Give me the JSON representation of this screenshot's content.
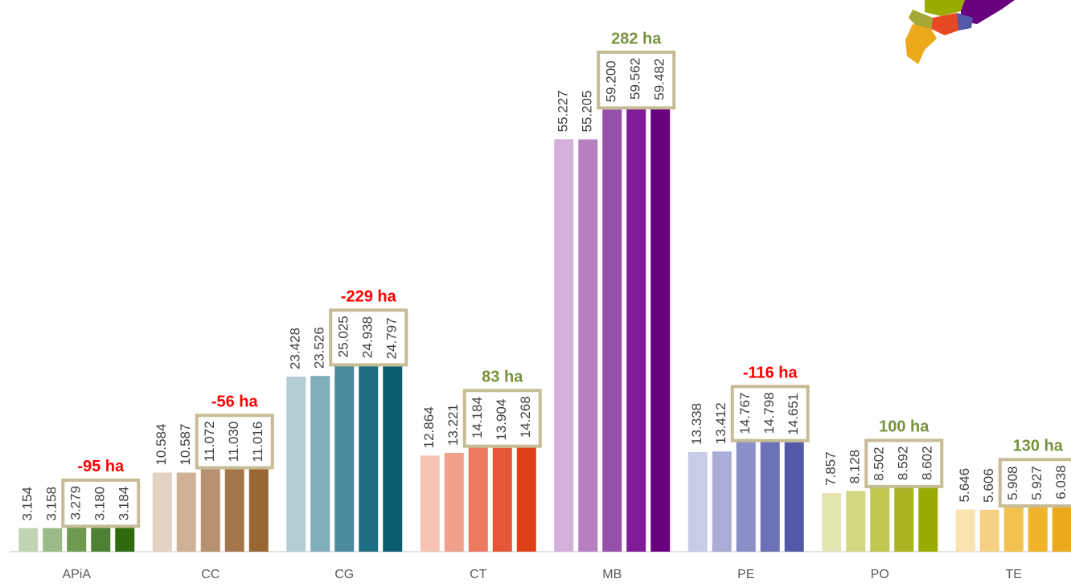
{
  "chart_data": {
    "type": "bar",
    "categories": [
      "APiA",
      "CC",
      "CG",
      "CT",
      "MB",
      "PE",
      "PO",
      "TE"
    ],
    "values": [
      [
        3154,
        3158,
        3279,
        3180,
        3184
      ],
      [
        10584,
        10587,
        11072,
        11030,
        11016
      ],
      [
        23428,
        23526,
        25025,
        24938,
        24797
      ],
      [
        12864,
        13221,
        14184,
        13904,
        14268
      ],
      [
        55227,
        55205,
        59200,
        59562,
        59482
      ],
      [
        13338,
        13412,
        14767,
        14798,
        14651
      ],
      [
        7857,
        8128,
        8502,
        8592,
        8602
      ],
      [
        5646,
        5606,
        5908,
        5927,
        6038
      ]
    ],
    "value_labels": [
      [
        "3.154",
        "3.158",
        "3.279",
        "3.180",
        "3.184"
      ],
      [
        "10.584",
        "10.587",
        "11.072",
        "11.030",
        "11.016"
      ],
      [
        "23.428",
        "23.526",
        "25.025",
        "24.938",
        "24.797"
      ],
      [
        "12.864",
        "13.221",
        "14.184",
        "13.904",
        "14.268"
      ],
      [
        "55.227",
        "55.205",
        "59.200",
        "59.562",
        "59.482"
      ],
      [
        "13.338",
        "13.412",
        "14.767",
        "14.798",
        "14.651"
      ],
      [
        "7.857",
        "8.128",
        "8.502",
        "8.592",
        "8.602"
      ],
      [
        "5.646",
        "5.606",
        "5.908",
        "5.927",
        "6.038"
      ]
    ],
    "colors": [
      [
        "#c0d4b4",
        "#9bba86",
        "#6e9a50",
        "#4c8032",
        "#2e6b0f"
      ],
      [
        "#e2d2c2",
        "#cfb196",
        "#b89270",
        "#a5754a",
        "#9a6633"
      ],
      [
        "#b3cdd3",
        "#7fadb9",
        "#4a8a9c",
        "#1f6d80",
        "#0a5b6e"
      ],
      [
        "#f7c4b4",
        "#f0a08a",
        "#eb7a60",
        "#e55638",
        "#dd3f17"
      ],
      [
        "#d4b1da",
        "#b680c1",
        "#9650aa",
        "#801c98",
        "#68007f"
      ],
      [
        "#c9cce6",
        "#a8acd6",
        "#8a8fc7",
        "#6c71b6",
        "#5458a8"
      ],
      [
        "#e2e5af",
        "#d2d880",
        "#bfc74f",
        "#aab321",
        "#9aab00"
      ],
      [
        "#f9e1b0",
        "#f6d183",
        "#f2c14f",
        "#efb42a",
        "#eba91b"
      ]
    ],
    "annotations": [
      "-95 ha",
      "-56 ha",
      "-229 ha",
      "83 ha",
      "282 ha",
      "-116 ha",
      "100 ha",
      "130 ha"
    ],
    "annotation_colors": [
      "#ff0000",
      "#ff0000",
      "#ff0000",
      "#77933c",
      "#77933c",
      "#ff0000",
      "#77933c",
      "#77933c"
    ],
    "box_color": "#c6bc96"
  }
}
